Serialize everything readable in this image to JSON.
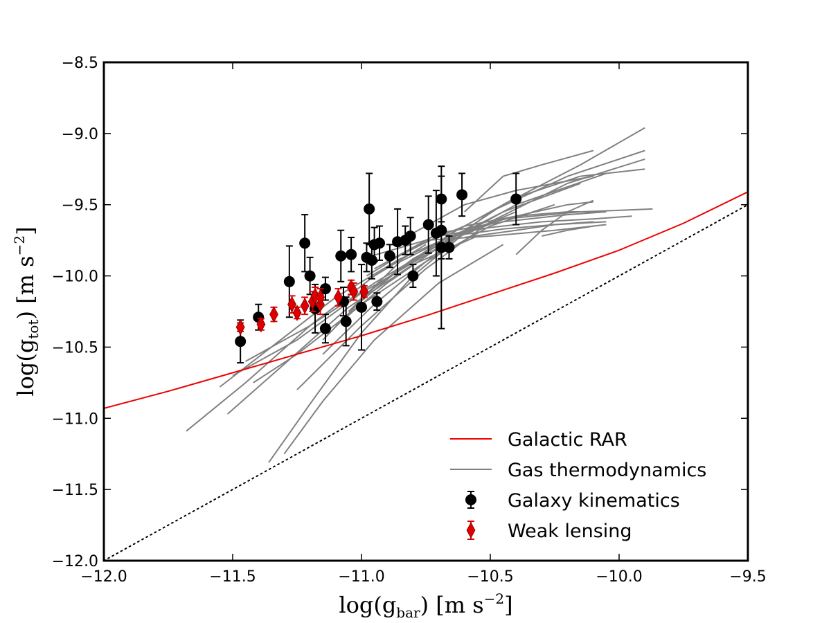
{
  "chart_data": {
    "type": "scatter",
    "xlabel": {
      "prefix": "log(g",
      "sub": "bar",
      "suffix": ") [m s",
      "sup": "−2",
      "end": "]"
    },
    "ylabel": {
      "prefix": "log(g",
      "sub": "tot",
      "suffix": ") [m s",
      "sup": "−2",
      "end": "]"
    },
    "xlim": [
      -12.0,
      -9.5
    ],
    "ylim": [
      -12.0,
      -8.5
    ],
    "x_ticks": [
      -12.0,
      -11.5,
      -11.0,
      -10.5,
      -10.0,
      -9.5
    ],
    "x_tick_labels": [
      "−12.0",
      "−11.5",
      "−11.0",
      "−10.5",
      "−10.0",
      "−9.5"
    ],
    "y_ticks": [
      -12.0,
      -11.5,
      -11.0,
      -10.5,
      -10.0,
      -9.5,
      -9.0,
      -8.5
    ],
    "y_tick_labels": [
      "−12.0",
      "−11.5",
      "−11.0",
      "−10.5",
      "−10.0",
      "−9.5",
      "−9.0",
      "−8.5"
    ],
    "grid": false,
    "legend_position": "bottom-right",
    "colors": {
      "rar": "#ee0000",
      "gas": "#808080",
      "kinematics": "#000000",
      "lensing": "#dd0000",
      "identity": "#000000"
    },
    "legend": [
      {
        "label": "Galactic RAR",
        "style": "red-line"
      },
      {
        "label": "Gas thermodynamics",
        "style": "gray-line"
      },
      {
        "label": "Galaxy kinematics",
        "style": "black-circle-errorbar"
      },
      {
        "label": "Weak lensing",
        "style": "red-diamond-errorbar"
      }
    ],
    "identity_line": {
      "x": [
        -12.0,
        -9.5
      ],
      "y": [
        -12.0,
        -9.5
      ],
      "style": "dotted"
    },
    "galactic_rar": {
      "x": [
        -12.0,
        -11.75,
        -11.5,
        -11.25,
        -11.0,
        -10.75,
        -10.5,
        -10.25,
        -10.0,
        -9.75,
        -9.5
      ],
      "y": [
        -10.93,
        -10.81,
        -10.68,
        -10.55,
        -10.42,
        -10.28,
        -10.13,
        -9.98,
        -9.82,
        -9.63,
        -9.41
      ]
    },
    "gas_thermodynamics": [
      {
        "x": [
          -11.68,
          -11.45,
          -11.2,
          -10.95,
          -10.75
        ],
        "y": [
          -11.09,
          -10.75,
          -10.35,
          -10.0,
          -9.78
        ]
      },
      {
        "x": [
          -11.52,
          -11.3,
          -11.05,
          -10.8,
          -10.55
        ],
        "y": [
          -10.97,
          -10.62,
          -10.22,
          -9.92,
          -9.72
        ]
      },
      {
        "x": [
          -11.55,
          -11.35,
          -11.1,
          -10.85,
          -10.6
        ],
        "y": [
          -10.78,
          -10.5,
          -10.15,
          -9.88,
          -9.68
        ]
      },
      {
        "x": [
          -11.36,
          -11.2,
          -11.0,
          -10.8,
          -10.6,
          -10.4
        ],
        "y": [
          -11.31,
          -10.9,
          -10.4,
          -10.0,
          -9.7,
          -9.55
        ]
      },
      {
        "x": [
          -11.3,
          -11.15,
          -10.95,
          -10.7,
          -10.45
        ],
        "y": [
          -11.25,
          -10.88,
          -10.45,
          -10.05,
          -9.78
        ]
      },
      {
        "x": [
          -11.42,
          -11.25,
          -11.0,
          -10.75,
          -10.5,
          -10.25
        ],
        "y": [
          -10.75,
          -10.55,
          -10.2,
          -9.9,
          -9.65,
          -9.5
        ]
      },
      {
        "x": [
          -11.45,
          -11.2,
          -10.95,
          -10.7,
          -10.45,
          -10.15
        ],
        "y": [
          -10.6,
          -10.35,
          -10.05,
          -9.78,
          -9.55,
          -9.35
        ]
      },
      {
        "x": [
          -11.5,
          -11.25,
          -11.0,
          -10.7,
          -10.4,
          -10.05
        ],
        "y": [
          -10.7,
          -10.45,
          -10.12,
          -9.8,
          -9.5,
          -9.28
        ]
      },
      {
        "x": [
          -11.25,
          -11.0,
          -10.75,
          -10.5,
          -10.2,
          -9.9
        ],
        "y": [
          -10.8,
          -10.35,
          -9.95,
          -9.62,
          -9.35,
          -9.18
        ]
      },
      {
        "x": [
          -11.15,
          -10.95,
          -10.75,
          -10.5,
          -10.2,
          -9.9
        ],
        "y": [
          -10.55,
          -10.2,
          -9.9,
          -9.55,
          -9.3,
          -9.12
        ]
      },
      {
        "x": [
          -11.1,
          -10.9,
          -10.7,
          -10.45,
          -10.15,
          -9.9
        ],
        "y": [
          -10.35,
          -10.05,
          -9.8,
          -9.5,
          -9.22,
          -8.96
        ]
      },
      {
        "x": [
          -11.05,
          -10.85,
          -10.65,
          -10.4,
          -10.15,
          -9.9
        ],
        "y": [
          -10.25,
          -9.95,
          -9.7,
          -9.45,
          -9.3,
          -9.25
        ]
      },
      {
        "x": [
          -11.15,
          -10.95,
          -10.7,
          -10.45,
          -10.15,
          -9.87
        ],
        "y": [
          -10.45,
          -10.08,
          -9.78,
          -9.6,
          -9.55,
          -9.53
        ]
      },
      {
        "x": [
          -11.0,
          -10.8,
          -10.6,
          -10.4,
          -10.2,
          -10.1
        ],
        "y": [
          -10.15,
          -9.88,
          -9.68,
          -9.58,
          -9.5,
          -9.48
        ]
      },
      {
        "x": [
          -10.98,
          -10.8,
          -10.6,
          -10.4,
          -10.2,
          -10.05
        ],
        "y": [
          -10.0,
          -9.8,
          -9.65,
          -9.58,
          -9.55,
          -9.55
        ]
      },
      {
        "x": [
          -11.05,
          -10.85,
          -10.65,
          -10.45,
          -10.25,
          -10.05
        ],
        "y": [
          -10.25,
          -9.9,
          -9.72,
          -9.67,
          -9.64,
          -9.62
        ]
      },
      {
        "x": [
          -10.95,
          -10.7,
          -10.45,
          -10.2,
          -10.05
        ],
        "y": [
          -9.95,
          -9.7,
          -9.62,
          -9.57,
          -9.55
        ]
      },
      {
        "x": [
          -10.9,
          -10.7,
          -10.5,
          -10.3,
          -10.1,
          -9.95
        ],
        "y": [
          -9.9,
          -9.72,
          -9.66,
          -9.62,
          -9.6,
          -9.58
        ]
      },
      {
        "x": [
          -11.0,
          -10.75,
          -10.5,
          -10.25,
          -10.05
        ],
        "y": [
          -9.88,
          -9.75,
          -9.72,
          -9.68,
          -9.64
        ]
      },
      {
        "x": [
          -10.8,
          -10.6,
          -10.4,
          -10.25,
          -10.1
        ],
        "y": [
          -9.7,
          -9.5,
          -9.4,
          -9.35,
          -9.3
        ]
      },
      {
        "x": [
          -10.6,
          -10.45,
          -10.3,
          -10.2,
          -10.1
        ],
        "y": [
          -9.55,
          -9.3,
          -9.22,
          -9.17,
          -9.12
        ]
      },
      {
        "x": [
          -10.4,
          -10.3,
          -10.2,
          -10.1
        ],
        "y": [
          -9.85,
          -9.68,
          -9.55,
          -9.47
        ]
      },
      {
        "x": [
          -10.6,
          -10.4,
          -10.25,
          -10.1
        ],
        "y": [
          -9.73,
          -9.68,
          -9.64,
          -9.62
        ]
      },
      {
        "x": [
          -10.3,
          -10.2,
          -10.1
        ],
        "y": [
          -9.72,
          -9.68,
          -9.65
        ]
      }
    ],
    "galaxy_kinematics": [
      {
        "x": -11.47,
        "y": -10.46,
        "err": 0.15
      },
      {
        "x": -11.4,
        "y": -10.29,
        "err": 0.09
      },
      {
        "x": -11.28,
        "y": -10.04,
        "err": 0.25
      },
      {
        "x": -11.22,
        "y": -9.77,
        "err": 0.2
      },
      {
        "x": -11.2,
        "y": -10.0,
        "err": 0.13
      },
      {
        "x": -11.18,
        "y": -10.23,
        "err": 0.17
      },
      {
        "x": -11.14,
        "y": -10.37,
        "err": 0.1
      },
      {
        "x": -11.14,
        "y": -10.09,
        "err": 0.08
      },
      {
        "x": -11.08,
        "y": -9.86,
        "err": 0.18
      },
      {
        "x": -11.07,
        "y": -10.18,
        "err": 0.1
      },
      {
        "x": -11.06,
        "y": -10.32,
        "err": 0.17
      },
      {
        "x": -11.04,
        "y": -9.85,
        "err": 0.12
      },
      {
        "x": -11.0,
        "y": -10.22,
        "err": 0.3
      },
      {
        "x": -10.98,
        "y": -9.87,
        "err": 0.1
      },
      {
        "x": -10.97,
        "y": -9.53,
        "err": 0.25
      },
      {
        "x": -10.96,
        "y": -9.89,
        "err": 0.13
      },
      {
        "x": -10.95,
        "y": -9.78,
        "err": 0.12
      },
      {
        "x": -10.94,
        "y": -10.18,
        "err": 0.06
      },
      {
        "x": -10.93,
        "y": -9.77,
        "err": 0.12
      },
      {
        "x": -10.89,
        "y": -9.86,
        "err": 0.08
      },
      {
        "x": -10.86,
        "y": -9.76,
        "err": 0.23
      },
      {
        "x": -10.83,
        "y": -9.75,
        "err": 0.1
      },
      {
        "x": -10.81,
        "y": -9.72,
        "err": 0.13
      },
      {
        "x": -10.8,
        "y": -10.0,
        "err": 0.08
      },
      {
        "x": -10.74,
        "y": -9.64,
        "err": 0.2
      },
      {
        "x": -10.71,
        "y": -9.7,
        "err": 0.3
      },
      {
        "x": -10.69,
        "y": -9.46,
        "err": 0.16
      },
      {
        "x": -10.69,
        "y": -9.68,
        "err": 0.2
      },
      {
        "x": -10.69,
        "y": -9.8,
        "err": 0.57
      },
      {
        "x": -10.66,
        "y": -9.8,
        "err": 0.08
      },
      {
        "x": -10.61,
        "y": -9.43,
        "err": 0.15
      },
      {
        "x": -10.4,
        "y": -9.46,
        "err": 0.18
      }
    ],
    "weak_lensing": [
      {
        "x": -11.47,
        "y": -10.36,
        "err": 0.03
      },
      {
        "x": -11.39,
        "y": -10.34,
        "err": 0.04
      },
      {
        "x": -11.34,
        "y": -10.27,
        "err": 0.05
      },
      {
        "x": -11.27,
        "y": -10.2,
        "err": 0.06
      },
      {
        "x": -11.25,
        "y": -10.26,
        "err": 0.04
      },
      {
        "x": -11.22,
        "y": -10.21,
        "err": 0.06
      },
      {
        "x": -11.19,
        "y": -10.18,
        "err": 0.07
      },
      {
        "x": -11.18,
        "y": -10.14,
        "err": 0.06
      },
      {
        "x": -11.16,
        "y": -10.2,
        "err": 0.07
      },
      {
        "x": -11.16,
        "y": -10.15,
        "err": 0.06
      },
      {
        "x": -11.09,
        "y": -10.15,
        "err": 0.06
      },
      {
        "x": -11.04,
        "y": -10.08,
        "err": 0.05
      },
      {
        "x": -11.03,
        "y": -10.11,
        "err": 0.06
      },
      {
        "x": -10.99,
        "y": -10.11,
        "err": 0.04
      }
    ]
  }
}
